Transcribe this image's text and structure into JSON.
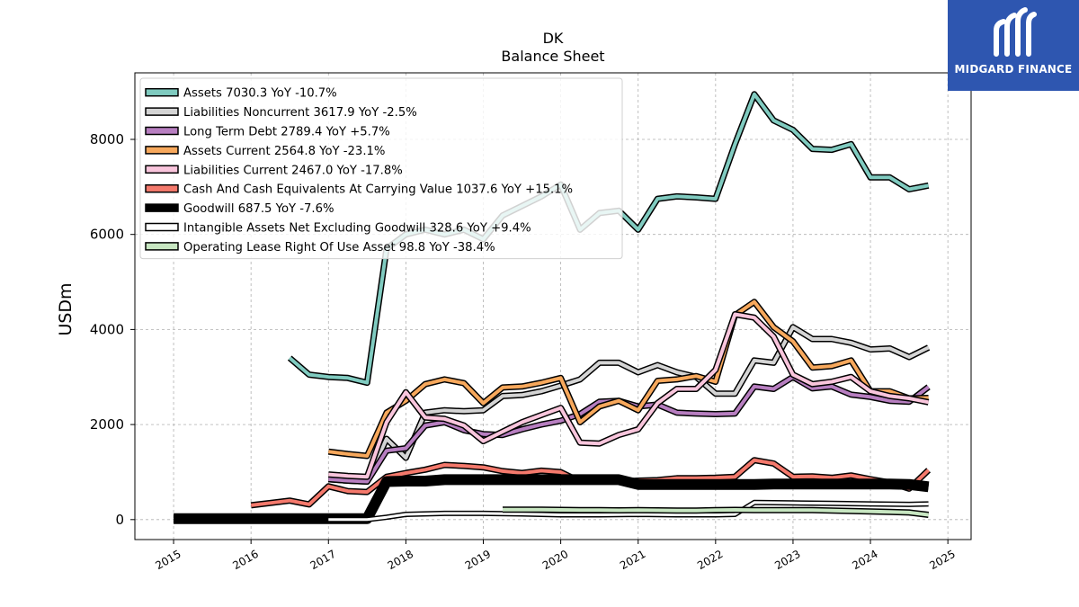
{
  "brand": {
    "name": "MIDGARD FINANCE",
    "logo_icon": "midgard-logo-icon",
    "color": "#2e56b0"
  },
  "chart_data": {
    "type": "line",
    "title": "DK",
    "subtitle": "Balance  Sheet",
    "ylabel": "USDm",
    "xlim": [
      2014.5,
      2025.3
    ],
    "ylim": [
      -420,
      9400
    ],
    "xticks": [
      2015,
      2016,
      2017,
      2018,
      2019,
      2020,
      2021,
      2022,
      2023,
      2024,
      2025
    ],
    "xtick_labels": [
      "2015",
      "2016",
      "2017",
      "2018",
      "2019",
      "2020",
      "2021",
      "2022",
      "2023",
      "2024",
      "2025"
    ],
    "yticks": [
      0,
      2000,
      4000,
      6000,
      8000
    ],
    "ytick_labels": [
      "0",
      "2000",
      "4000",
      "6000",
      "8000"
    ],
    "grid": true,
    "legend_position": "upper-left",
    "series": [
      {
        "name": "Assets  7030.3 YoY -10.7%",
        "color": "#80cbc0",
        "width": 4,
        "points": [
          [
            2016.5,
            3400
          ],
          [
            2016.75,
            3050
          ],
          [
            2017.0,
            3000
          ],
          [
            2017.25,
            2980
          ],
          [
            2017.5,
            2880
          ],
          [
            2017.75,
            5700
          ],
          [
            2018.0,
            6000
          ],
          [
            2018.25,
            6100
          ],
          [
            2018.5,
            6000
          ],
          [
            2018.75,
            6100
          ],
          [
            2019.0,
            5900
          ],
          [
            2019.25,
            6400
          ],
          [
            2019.5,
            6600
          ],
          [
            2019.75,
            6800
          ],
          [
            2020.0,
            7050
          ],
          [
            2020.25,
            6100
          ],
          [
            2020.5,
            6450
          ],
          [
            2020.75,
            6500
          ],
          [
            2021.0,
            6100
          ],
          [
            2021.25,
            6750
          ],
          [
            2021.5,
            6800
          ],
          [
            2021.75,
            6780
          ],
          [
            2022.0,
            6750
          ],
          [
            2022.25,
            7900
          ],
          [
            2022.5,
            8950
          ],
          [
            2022.75,
            8400
          ],
          [
            2023.0,
            8200
          ],
          [
            2023.25,
            7800
          ],
          [
            2023.5,
            7780
          ],
          [
            2023.75,
            7900
          ],
          [
            2024.0,
            7200
          ],
          [
            2024.25,
            7200
          ],
          [
            2024.5,
            6950
          ],
          [
            2024.75,
            7030
          ]
        ]
      },
      {
        "name": "Liabilities Noncurrent  3617.9 YoY -2.5%",
        "color": "#d4d4d4",
        "width": 4,
        "points": [
          [
            2017.0,
            850
          ],
          [
            2017.25,
            820
          ],
          [
            2017.5,
            800
          ],
          [
            2017.75,
            1700
          ],
          [
            2018.0,
            1300
          ],
          [
            2018.25,
            2250
          ],
          [
            2018.5,
            2300
          ],
          [
            2018.75,
            2280
          ],
          [
            2019.0,
            2300
          ],
          [
            2019.25,
            2600
          ],
          [
            2019.5,
            2620
          ],
          [
            2019.75,
            2700
          ],
          [
            2020.0,
            2820
          ],
          [
            2020.25,
            2950
          ],
          [
            2020.5,
            3300
          ],
          [
            2020.75,
            3300
          ],
          [
            2021.0,
            3100
          ],
          [
            2021.25,
            3250
          ],
          [
            2021.5,
            3100
          ],
          [
            2021.75,
            3000
          ],
          [
            2022.0,
            2650
          ],
          [
            2022.25,
            2650
          ],
          [
            2022.5,
            3350
          ],
          [
            2022.75,
            3300
          ],
          [
            2023.0,
            4050
          ],
          [
            2023.25,
            3800
          ],
          [
            2023.5,
            3800
          ],
          [
            2023.75,
            3720
          ],
          [
            2024.0,
            3580
          ],
          [
            2024.25,
            3600
          ],
          [
            2024.5,
            3420
          ],
          [
            2024.75,
            3620
          ]
        ]
      },
      {
        "name": "Long Term Debt  2789.4 YoY +5.7%",
        "color": "#b77ec0",
        "width": 4,
        "points": [
          [
            2017.0,
            850
          ],
          [
            2017.25,
            820
          ],
          [
            2017.5,
            800
          ],
          [
            2017.75,
            1450
          ],
          [
            2018.0,
            1500
          ],
          [
            2018.25,
            1980
          ],
          [
            2018.5,
            2050
          ],
          [
            2018.75,
            1880
          ],
          [
            2019.0,
            1800
          ],
          [
            2019.25,
            1780
          ],
          [
            2019.5,
            1900
          ],
          [
            2019.75,
            2000
          ],
          [
            2020.0,
            2080
          ],
          [
            2020.25,
            2220
          ],
          [
            2020.5,
            2480
          ],
          [
            2020.75,
            2500
          ],
          [
            2021.0,
            2380
          ],
          [
            2021.25,
            2420
          ],
          [
            2021.5,
            2250
          ],
          [
            2021.75,
            2230
          ],
          [
            2022.0,
            2220
          ],
          [
            2022.25,
            2230
          ],
          [
            2022.5,
            2800
          ],
          [
            2022.75,
            2750
          ],
          [
            2023.0,
            3000
          ],
          [
            2023.25,
            2760
          ],
          [
            2023.5,
            2800
          ],
          [
            2023.75,
            2630
          ],
          [
            2024.0,
            2580
          ],
          [
            2024.25,
            2500
          ],
          [
            2024.5,
            2480
          ],
          [
            2024.75,
            2790
          ]
        ]
      },
      {
        "name": "Assets Current  2564.8 YoY -23.1%",
        "color": "#f7a85c",
        "width": 4,
        "points": [
          [
            2017.0,
            1430
          ],
          [
            2017.25,
            1380
          ],
          [
            2017.5,
            1340
          ],
          [
            2017.75,
            2250
          ],
          [
            2018.0,
            2500
          ],
          [
            2018.25,
            2850
          ],
          [
            2018.5,
            2950
          ],
          [
            2018.75,
            2870
          ],
          [
            2019.0,
            2450
          ],
          [
            2019.25,
            2780
          ],
          [
            2019.5,
            2800
          ],
          [
            2019.75,
            2880
          ],
          [
            2020.0,
            2980
          ],
          [
            2020.25,
            2050
          ],
          [
            2020.5,
            2380
          ],
          [
            2020.75,
            2500
          ],
          [
            2021.0,
            2300
          ],
          [
            2021.25,
            2920
          ],
          [
            2021.5,
            2950
          ],
          [
            2021.75,
            3020
          ],
          [
            2022.0,
            2900
          ],
          [
            2022.25,
            4300
          ],
          [
            2022.5,
            4580
          ],
          [
            2022.75,
            4050
          ],
          [
            2023.0,
            3750
          ],
          [
            2023.25,
            3200
          ],
          [
            2023.5,
            3230
          ],
          [
            2023.75,
            3350
          ],
          [
            2024.0,
            2700
          ],
          [
            2024.25,
            2700
          ],
          [
            2024.5,
            2550
          ],
          [
            2024.75,
            2560
          ]
        ]
      },
      {
        "name": "Liabilities Current  2467.0 YoY -17.8%",
        "color": "#f9c5dc",
        "width": 4,
        "points": [
          [
            2017.0,
            950
          ],
          [
            2017.25,
            920
          ],
          [
            2017.5,
            900
          ],
          [
            2017.75,
            2050
          ],
          [
            2018.0,
            2680
          ],
          [
            2018.25,
            2150
          ],
          [
            2018.5,
            2120
          ],
          [
            2018.75,
            1980
          ],
          [
            2019.0,
            1650
          ],
          [
            2019.25,
            1850
          ],
          [
            2019.5,
            2050
          ],
          [
            2019.75,
            2200
          ],
          [
            2020.0,
            2350
          ],
          [
            2020.25,
            1620
          ],
          [
            2020.5,
            1600
          ],
          [
            2020.75,
            1780
          ],
          [
            2021.0,
            1900
          ],
          [
            2021.25,
            2450
          ],
          [
            2021.5,
            2750
          ],
          [
            2021.75,
            2750
          ],
          [
            2022.0,
            3150
          ],
          [
            2022.25,
            4320
          ],
          [
            2022.5,
            4250
          ],
          [
            2022.75,
            3850
          ],
          [
            2023.0,
            3050
          ],
          [
            2023.25,
            2850
          ],
          [
            2023.5,
            2900
          ],
          [
            2023.75,
            3000
          ],
          [
            2024.0,
            2700
          ],
          [
            2024.25,
            2600
          ],
          [
            2024.5,
            2550
          ],
          [
            2024.75,
            2470
          ]
        ]
      },
      {
        "name": "Cash And Cash Equivalents At Carrying Value  1037.6 YoY +15.1%",
        "color": "#f4796c",
        "width": 4,
        "points": [
          [
            2016.0,
            300
          ],
          [
            2016.25,
            350
          ],
          [
            2016.5,
            400
          ],
          [
            2016.75,
            320
          ],
          [
            2017.0,
            700
          ],
          [
            2017.25,
            600
          ],
          [
            2017.5,
            580
          ],
          [
            2017.75,
            900
          ],
          [
            2018.0,
            980
          ],
          [
            2018.25,
            1050
          ],
          [
            2018.5,
            1150
          ],
          [
            2018.75,
            1130
          ],
          [
            2019.0,
            1100
          ],
          [
            2019.25,
            1020
          ],
          [
            2019.5,
            980
          ],
          [
            2019.75,
            1030
          ],
          [
            2020.0,
            1000
          ],
          [
            2020.25,
            800
          ],
          [
            2020.5,
            850
          ],
          [
            2020.75,
            800
          ],
          [
            2021.0,
            820
          ],
          [
            2021.25,
            830
          ],
          [
            2021.5,
            870
          ],
          [
            2021.75,
            870
          ],
          [
            2022.0,
            880
          ],
          [
            2022.25,
            900
          ],
          [
            2022.5,
            1250
          ],
          [
            2022.75,
            1180
          ],
          [
            2023.0,
            900
          ],
          [
            2023.25,
            910
          ],
          [
            2023.5,
            880
          ],
          [
            2023.75,
            930
          ],
          [
            2024.0,
            850
          ],
          [
            2024.25,
            780
          ],
          [
            2024.5,
            650
          ],
          [
            2024.75,
            1040
          ]
        ]
      },
      {
        "name": "Goodwill  687.5 YoY -7.6%",
        "color": "#000000",
        "width": 9,
        "points": [
          [
            2015.0,
            20
          ],
          [
            2015.5,
            20
          ],
          [
            2016.0,
            20
          ],
          [
            2016.5,
            20
          ],
          [
            2017.0,
            20
          ],
          [
            2017.25,
            20
          ],
          [
            2017.5,
            20
          ],
          [
            2017.75,
            800
          ],
          [
            2018.0,
            810
          ],
          [
            2018.25,
            810
          ],
          [
            2018.5,
            840
          ],
          [
            2018.75,
            840
          ],
          [
            2019.0,
            840
          ],
          [
            2019.25,
            840
          ],
          [
            2019.5,
            840
          ],
          [
            2019.75,
            840
          ],
          [
            2020.0,
            840
          ],
          [
            2020.25,
            840
          ],
          [
            2020.5,
            840
          ],
          [
            2020.75,
            840
          ],
          [
            2021.0,
            740
          ],
          [
            2021.25,
            740
          ],
          [
            2021.5,
            740
          ],
          [
            2021.75,
            740
          ],
          [
            2022.0,
            740
          ],
          [
            2022.25,
            740
          ],
          [
            2022.5,
            740
          ],
          [
            2022.75,
            750
          ],
          [
            2023.0,
            750
          ],
          [
            2023.25,
            750
          ],
          [
            2023.5,
            750
          ],
          [
            2023.75,
            750
          ],
          [
            2024.0,
            750
          ],
          [
            2024.25,
            750
          ],
          [
            2024.5,
            740
          ],
          [
            2024.75,
            690
          ]
        ]
      },
      {
        "name": "Intangible Assets Net Excluding Goodwill  328.6 YoY +9.4%",
        "color": "#ffffff",
        "width": 3,
        "points": [
          [
            2017.0,
            0
          ],
          [
            2017.5,
            0
          ],
          [
            2017.75,
            50
          ],
          [
            2018.0,
            110
          ],
          [
            2018.5,
            130
          ],
          [
            2019.0,
            130
          ],
          [
            2019.5,
            120
          ],
          [
            2020.0,
            100
          ],
          [
            2020.5,
            100
          ],
          [
            2021.0,
            110
          ],
          [
            2021.5,
            100
          ],
          [
            2022.0,
            100
          ],
          [
            2022.25,
            110
          ],
          [
            2022.5,
            360
          ],
          [
            2023.0,
            350
          ],
          [
            2023.5,
            340
          ],
          [
            2024.0,
            330
          ],
          [
            2024.5,
            320
          ],
          [
            2024.75,
            330
          ]
        ]
      },
      {
        "name": "Operating Lease Right Of Use Asset  98.8 YoY -38.4%",
        "color": "#c7e6c1",
        "width": 4,
        "points": [
          [
            2019.25,
            210
          ],
          [
            2019.5,
            210
          ],
          [
            2019.75,
            210
          ],
          [
            2020.0,
            205
          ],
          [
            2020.25,
            200
          ],
          [
            2020.5,
            200
          ],
          [
            2020.75,
            195
          ],
          [
            2021.0,
            200
          ],
          [
            2021.25,
            195
          ],
          [
            2021.5,
            190
          ],
          [
            2021.75,
            190
          ],
          [
            2022.0,
            200
          ],
          [
            2022.25,
            205
          ],
          [
            2022.5,
            200
          ],
          [
            2022.75,
            200
          ],
          [
            2023.0,
            200
          ],
          [
            2023.25,
            200
          ],
          [
            2023.5,
            190
          ],
          [
            2023.75,
            180
          ],
          [
            2024.0,
            170
          ],
          [
            2024.25,
            160
          ],
          [
            2024.5,
            150
          ],
          [
            2024.75,
            100
          ]
        ]
      }
    ]
  }
}
